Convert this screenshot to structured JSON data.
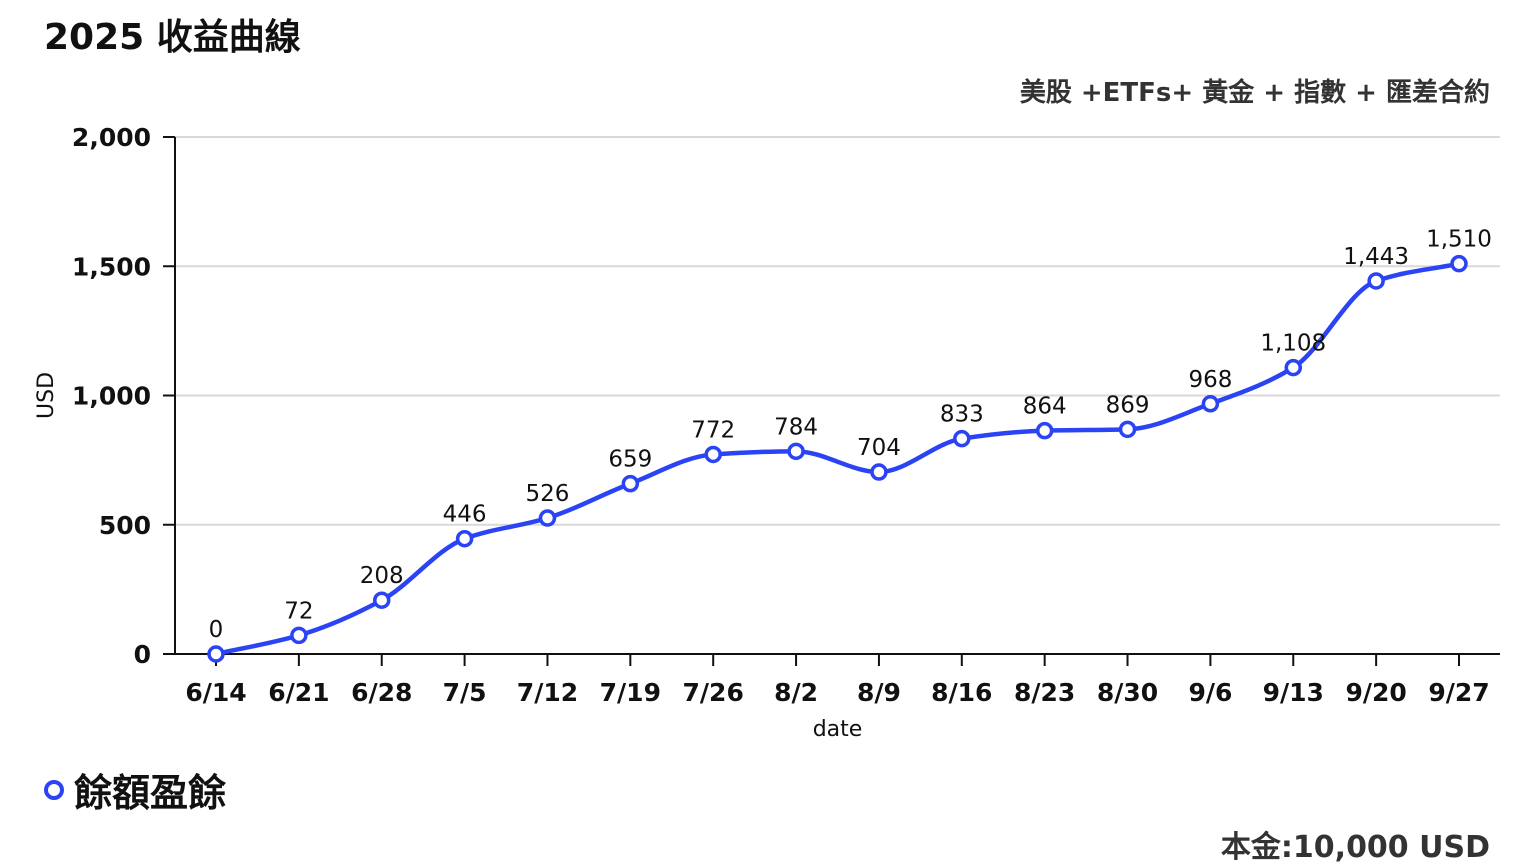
{
  "title": "2025 收益曲線",
  "subtitle": "美股 +ETFs+ 黃金 + 指數 + 匯差合約",
  "footer_note": "本金:10,000 USD",
  "legend": [
    {
      "label": "餘額盈餘",
      "marker": "open-circle"
    }
  ],
  "colors": {
    "series": "#2a44f5",
    "grid": "#d9d9d9",
    "axis": "#111111"
  },
  "chart_data": {
    "type": "line",
    "title": "2025 收益曲線",
    "subtitle": "美股 +ETFs+ 黃金 + 指數 + 匯差合約",
    "xlabel": "date",
    "ylabel": "USD",
    "categories": [
      "6/14",
      "6/21",
      "6/28",
      "7/5",
      "7/12",
      "7/19",
      "7/26",
      "8/2",
      "8/9",
      "8/16",
      "8/23",
      "8/30",
      "9/6",
      "9/13",
      "9/20",
      "9/27"
    ],
    "series": [
      {
        "name": "餘額盈餘",
        "values": [
          0,
          72,
          208,
          446,
          526,
          659,
          772,
          784,
          704,
          833,
          864,
          869,
          968,
          1108,
          1443,
          1510
        ],
        "data_labels": [
          "0",
          "72",
          "208",
          "446",
          "526",
          "659",
          "772",
          "784",
          "704",
          "833",
          "864",
          "869",
          "968",
          "1,108",
          "1,443",
          "1,510"
        ]
      }
    ],
    "ylim": [
      0,
      2000
    ],
    "yticks": [
      0,
      500,
      1000,
      1500,
      2000
    ],
    "ytick_labels": [
      "0",
      "500",
      "1,000",
      "1,500",
      "2,000"
    ],
    "grid": true,
    "legend_position": "bottom-left",
    "smooth": true
  }
}
